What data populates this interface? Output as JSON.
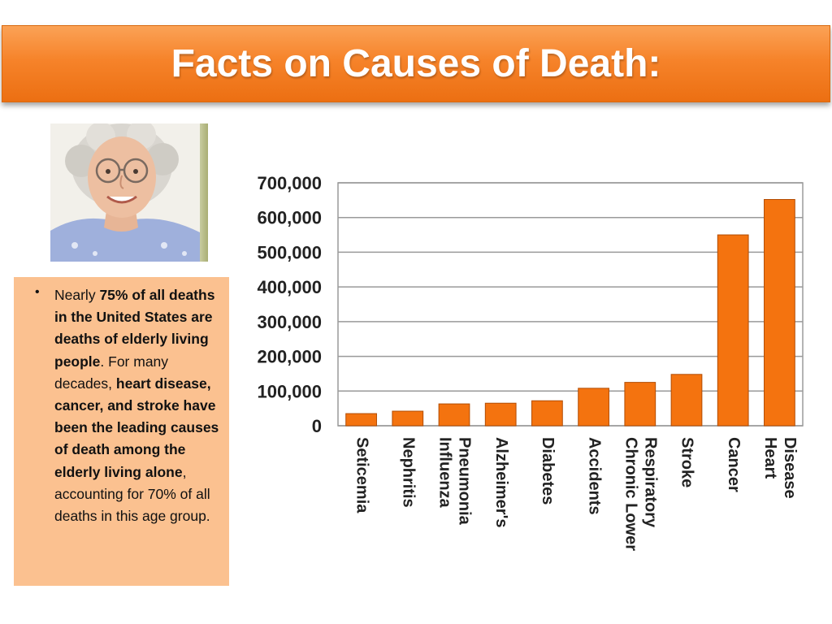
{
  "title": "Facts on Causes of Death:",
  "bullet": {
    "marker": "•",
    "parts": [
      {
        "text": "Nearly ",
        "bold": false
      },
      {
        "text": "75% of all deaths in the United States are deaths of elderly living people",
        "bold": true
      },
      {
        "text": ". For many decades, ",
        "bold": false
      },
      {
        "text": "heart disease, cancer, and stroke have been the leading causes of death among the elderly living alone",
        "bold": true
      },
      {
        "text": ", accounting for 70% of all deaths in this age group.",
        "bold": false
      }
    ]
  },
  "colors": {
    "accent": "#f07c1c",
    "bar": "#f4730f",
    "bullet_bg": "#fbc190"
  },
  "chart_data": {
    "type": "bar",
    "title": "",
    "xlabel": "",
    "ylabel": "",
    "categories": [
      "Seticemia",
      "Nephritis",
      "Influenza Pneumonia",
      "Alzheimer's",
      "Diabetes",
      "Accidents",
      "Chronic Lower Respiratory",
      "Stroke",
      "Cancer",
      "Heart Disease"
    ],
    "category_lines": [
      [
        "Seticemia"
      ],
      [
        "Nephritis"
      ],
      [
        "Influenza",
        "Pneumonia"
      ],
      [
        "Alzheimer's"
      ],
      [
        "Diabetes"
      ],
      [
        "Accidents"
      ],
      [
        "Chronic Lower",
        "Respiratory"
      ],
      [
        "Stroke"
      ],
      [
        "Cancer"
      ],
      [
        "Heart",
        "Disease"
      ]
    ],
    "values": [
      35000,
      42000,
      63000,
      65000,
      72000,
      108000,
      125000,
      148000,
      550000,
      652000
    ],
    "ylim": [
      0,
      700000
    ],
    "yticks": [
      0,
      100000,
      200000,
      300000,
      400000,
      500000,
      600000,
      700000
    ],
    "ytick_labels": [
      "0",
      "100,000",
      "200,000",
      "300,000",
      "400,000",
      "500,000",
      "600,000",
      "700,000"
    ],
    "grid": true,
    "legend": "none"
  }
}
